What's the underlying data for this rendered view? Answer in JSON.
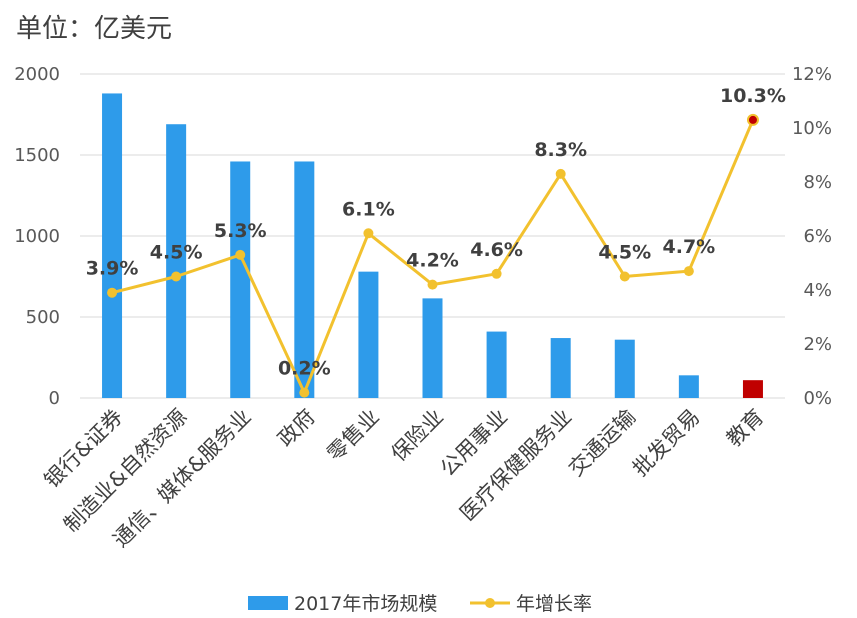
{
  "unit_label": "单位：亿美元",
  "chart_data": {
    "type": "bar",
    "categories": [
      "银行&证券",
      "制造业&自然资源",
      "通信、媒体&服务业",
      "政府",
      "零售业",
      "保险业",
      "公用事业",
      "医疗保健服务业",
      "交通运输",
      "批发贸易",
      "教育"
    ],
    "series": [
      {
        "name": "2017年市场规模",
        "type": "bar",
        "axis": "left",
        "values": [
          1880,
          1690,
          1460,
          1460,
          780,
          615,
          410,
          370,
          360,
          140,
          110
        ],
        "color": "#2e9bea",
        "highlight": {
          "index": 10,
          "color": "#c00000"
        }
      },
      {
        "name": "年增长率",
        "type": "line",
        "axis": "right",
        "values": [
          3.9,
          4.5,
          5.3,
          0.2,
          6.1,
          4.2,
          4.6,
          8.3,
          4.5,
          4.7,
          10.3
        ],
        "labels": [
          "3.9%",
          "4.5%",
          "5.3%",
          "0.2%",
          "6.1%",
          "4.2%",
          "4.6%",
          "8.3%",
          "4.5%",
          "4.7%",
          "10.3%"
        ],
        "color": "#f2c12e",
        "highlight": {
          "index": 10,
          "color": "#c00000"
        }
      }
    ],
    "y_left": {
      "min": 0,
      "max": 2000,
      "ticks": [
        0,
        500,
        1000,
        1500,
        2000
      ],
      "tick_labels": [
        "0",
        "500",
        "1000",
        "1500",
        "2000"
      ]
    },
    "y_right": {
      "min": 0,
      "max": 12,
      "ticks": [
        0,
        2,
        4,
        6,
        8,
        10,
        12
      ],
      "tick_labels": [
        "0%",
        "2%",
        "4%",
        "6%",
        "8%",
        "10%",
        "12%"
      ]
    },
    "grid": true,
    "legend": {
      "position": "bottom",
      "entries": [
        "2017年市场规模",
        "年增长率"
      ]
    }
  }
}
